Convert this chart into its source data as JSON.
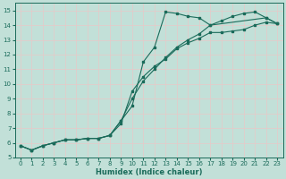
{
  "xlabel": "Humidex (Indice chaleur)",
  "xlim": [
    -0.5,
    23.5
  ],
  "ylim": [
    5,
    15.5
  ],
  "xticks": [
    0,
    1,
    2,
    3,
    4,
    5,
    6,
    7,
    8,
    9,
    10,
    11,
    12,
    13,
    14,
    15,
    16,
    17,
    18,
    19,
    20,
    21,
    22,
    23
  ],
  "yticks": [
    5,
    6,
    7,
    8,
    9,
    10,
    11,
    12,
    13,
    14,
    15
  ],
  "bg_color": "#c2e0d8",
  "grid_color": "#e8c8c8",
  "line_color": "#1a6b5a",
  "series1_x": [
    0,
    1,
    2,
    3,
    4,
    5,
    6,
    7,
    8,
    9,
    10,
    11,
    12,
    13,
    14,
    15,
    16,
    17,
    22,
    23
  ],
  "series1_y": [
    5.8,
    5.5,
    5.8,
    6.0,
    6.2,
    6.2,
    6.3,
    6.3,
    6.5,
    7.5,
    8.5,
    11.5,
    12.5,
    14.9,
    14.8,
    14.6,
    14.5,
    14.0,
    14.5,
    14.1
  ],
  "series2_x": [
    0,
    1,
    2,
    3,
    4,
    5,
    6,
    7,
    8,
    9,
    10,
    11,
    12,
    13,
    14,
    15,
    16,
    17,
    18,
    19,
    20,
    21,
    22,
    23
  ],
  "series2_y": [
    5.8,
    5.5,
    5.8,
    6.0,
    6.2,
    6.2,
    6.3,
    6.3,
    6.5,
    7.3,
    9.5,
    10.5,
    11.2,
    11.7,
    12.4,
    12.8,
    13.1,
    13.5,
    13.5,
    13.6,
    13.7,
    14.0,
    14.2,
    14.1
  ],
  "series3_x": [
    0,
    1,
    2,
    3,
    4,
    5,
    6,
    7,
    8,
    9,
    10,
    11,
    12,
    13,
    14,
    15,
    16,
    17,
    18,
    19,
    20,
    21,
    22,
    23
  ],
  "series3_y": [
    5.8,
    5.5,
    5.8,
    6.0,
    6.2,
    6.2,
    6.3,
    6.3,
    6.5,
    7.5,
    9.0,
    10.2,
    11.0,
    11.8,
    12.5,
    13.0,
    13.4,
    14.0,
    14.3,
    14.6,
    14.8,
    14.9,
    14.5,
    14.1
  ],
  "marker_size": 1.8,
  "line_width": 0.8,
  "tick_fontsize": 5.0,
  "xlabel_fontsize": 6.0
}
